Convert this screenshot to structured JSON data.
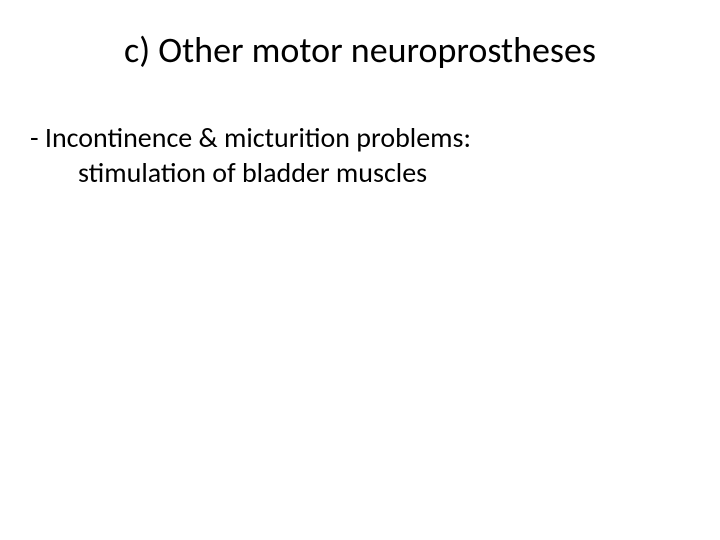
{
  "slide": {
    "title": "c) Other motor neuroprostheses",
    "body": {
      "line1": "- Incontinence & micturition problems:",
      "line2": "stimulation of bladder muscles"
    },
    "styles": {
      "background_color": "#ffffff",
      "text_color": "#000000",
      "title_fontsize": 36,
      "body_fontsize": 28,
      "font_family": "Calibri"
    }
  }
}
